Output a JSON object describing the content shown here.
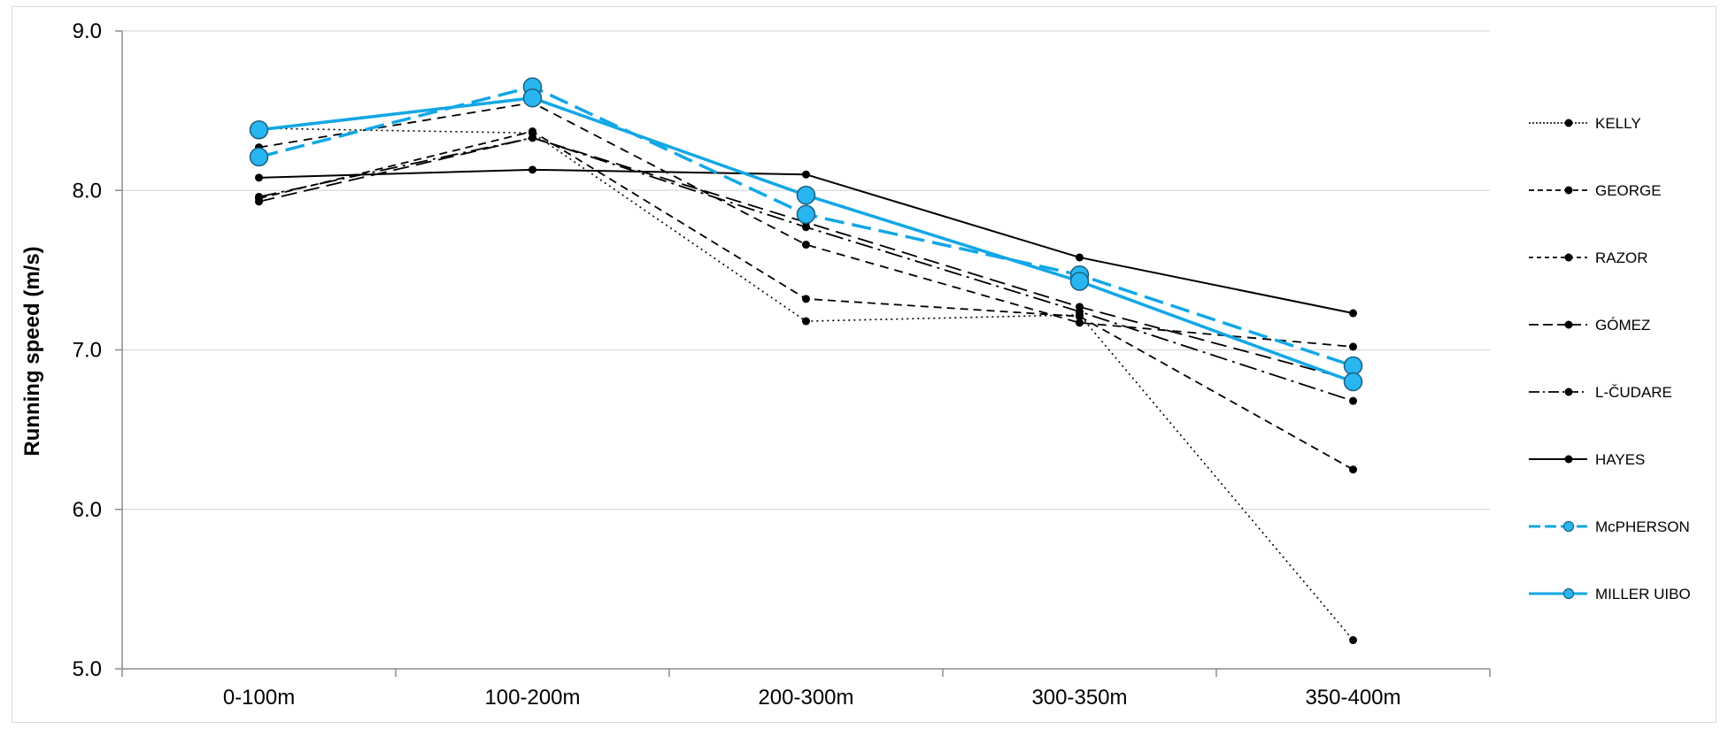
{
  "chart_data": {
    "type": "line",
    "title": "",
    "xlabel": "",
    "ylabel": "Running speed (m/s)",
    "categories": [
      "0-100m",
      "100-200m",
      "200-300m",
      "300-350m",
      "350-400m"
    ],
    "ylim": [
      5.0,
      9.0
    ],
    "yticks": [
      "5.0",
      "6.0",
      "7.0",
      "8.0",
      "9.0"
    ],
    "grid": "horizontal",
    "legend_position": "right",
    "series": [
      {
        "name": "KELLY",
        "values": [
          8.39,
          8.36,
          7.18,
          7.22,
          5.18
        ],
        "color": "#000000",
        "dash": "2,4",
        "width": 1.6,
        "marker": "small-black"
      },
      {
        "name": "GEORGE",
        "values": [
          8.27,
          8.55,
          7.66,
          7.17,
          7.02
        ],
        "color": "#000000",
        "dash": "10,7",
        "width": 1.8,
        "marker": "small-black"
      },
      {
        "name": "RAZOR",
        "values": [
          7.95,
          8.37,
          7.32,
          7.21,
          6.25
        ],
        "color": "#000000",
        "dash": "9,6",
        "width": 1.8,
        "marker": "small-black"
      },
      {
        "name": "GÓMEZ",
        "values": [
          7.93,
          8.33,
          7.8,
          7.27,
          6.81
        ],
        "color": "#000000",
        "dash": "18,8",
        "width": 1.8,
        "marker": "small-black"
      },
      {
        "name": "L-ČUDARE",
        "values": [
          7.96,
          8.33,
          7.77,
          7.24,
          6.68
        ],
        "color": "#000000",
        "dash": "20,6,3,6",
        "width": 1.8,
        "marker": "small-black"
      },
      {
        "name": "HAYES",
        "values": [
          8.08,
          8.13,
          8.1,
          7.58,
          7.23
        ],
        "color": "#000000",
        "dash": "",
        "width": 2,
        "marker": "small-black"
      },
      {
        "name": "McPHERSON",
        "values": [
          8.21,
          8.65,
          7.85,
          7.47,
          6.9
        ],
        "color": "#12a7e5",
        "dash": "22,9",
        "width": 3.5,
        "marker": "large-blue"
      },
      {
        "name": "MILLER UIBO",
        "values": [
          8.38,
          8.58,
          7.97,
          7.43,
          6.8
        ],
        "color": "#12a7e5",
        "dash": "",
        "width": 3.5,
        "marker": "large-blue"
      }
    ]
  }
}
